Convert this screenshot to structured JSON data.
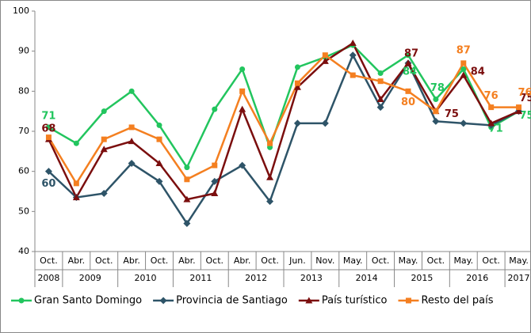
{
  "chart_data": {
    "type": "line",
    "categories": [
      "Oct.",
      "Abr.",
      "Oct.",
      "Abr.",
      "Oct.",
      "Abr.",
      "Oct.",
      "Abr.",
      "Oct.",
      "Jun.",
      "Nov.",
      "May.",
      "Oct.",
      "May.",
      "Oct.",
      "May.",
      "Oct.",
      "May."
    ],
    "years": [
      "2008",
      "2009",
      "2009",
      "2010",
      "2010",
      "2011",
      "2011",
      "2012",
      "2012",
      "2013",
      "2013",
      "2014",
      "2014",
      "2015",
      "2015",
      "2016",
      "2016",
      "2017"
    ],
    "ylim": [
      40,
      100
    ],
    "yticks": [
      40,
      50,
      60,
      70,
      80,
      90,
      100
    ],
    "series": [
      {
        "name": "Gran Santo Domingo",
        "color": "#22c55e",
        "marker": "circle",
        "values": [
          71,
          67,
          75,
          80,
          71.5,
          61,
          75.5,
          85.5,
          66,
          86,
          88.5,
          91.5,
          84.5,
          89,
          78,
          85.5,
          71,
          75
        ],
        "value_labels": [
          "71",
          null,
          null,
          null,
          null,
          null,
          null,
          null,
          null,
          null,
          null,
          null,
          null,
          null,
          "78",
          null,
          "71",
          "75"
        ]
      },
      {
        "name": "Provincia de Santiago",
        "color": "#2e5468",
        "marker": "diamond",
        "values": [
          60,
          53.5,
          54.5,
          62,
          57.5,
          47,
          57.5,
          61.5,
          52.5,
          72,
          72,
          89,
          76,
          87,
          72.5,
          72,
          71.5,
          75
        ],
        "value_labels": [
          "60",
          null,
          null,
          null,
          null,
          null,
          null,
          null,
          null,
          null,
          null,
          null,
          null,
          null,
          null,
          null,
          null,
          null
        ]
      },
      {
        "name": "País turístico",
        "color": "#7b0e0e",
        "marker": "triangle",
        "values": [
          68,
          53.5,
          65.5,
          67.5,
          62,
          53,
          54.5,
          75.5,
          58.5,
          81,
          87.5,
          92,
          78,
          87,
          75,
          84,
          72,
          75
        ],
        "value_labels": [
          "68",
          null,
          null,
          null,
          null,
          null,
          null,
          null,
          null,
          null,
          null,
          null,
          null,
          "87",
          "75",
          "84",
          null,
          "75"
        ]
      },
      {
        "name": "Resto del país",
        "color": "#f47f20",
        "marker": "square",
        "values": [
          68.5,
          57,
          68,
          71,
          68,
          58,
          61.5,
          80,
          67,
          82,
          89,
          84,
          82.5,
          80,
          75,
          87,
          76,
          76
        ],
        "value_labels": [
          null,
          null,
          null,
          null,
          null,
          null,
          null,
          null,
          null,
          null,
          null,
          null,
          null,
          "80",
          null,
          "87",
          "76",
          "76"
        ]
      }
    ],
    "annotations": [
      "84"
    ]
  }
}
